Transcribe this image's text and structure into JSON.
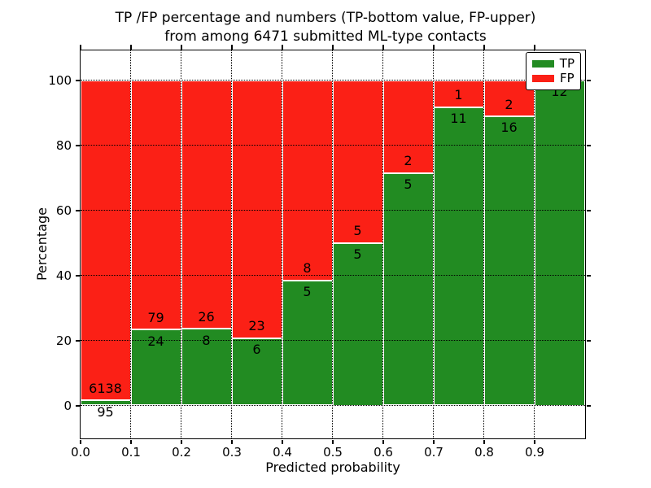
{
  "figure": {
    "title_line1": "TP /FP percentage and numbers (TP-bottom value, FP-upper)",
    "title_line2": "from among 6471 submitted ML-type contacts"
  },
  "chart_data": {
    "type": "bar",
    "stacked": true,
    "title": "TP /FP percentage and numbers (TP-bottom value, FP-upper)\nfrom among 6471 submitted ML-type contacts",
    "xlabel": "Predicted probability",
    "ylabel": "Percentage",
    "total_submitted": 6471,
    "bins": [
      "0.0-0.1",
      "0.1-0.2",
      "0.2-0.3",
      "0.3-0.4",
      "0.4-0.5",
      "0.5-0.6",
      "0.6-0.7",
      "0.7-0.8",
      "0.8-0.9",
      "0.9-1.0"
    ],
    "series": [
      {
        "name": "TP",
        "color": "#228b22",
        "counts": [
          95,
          24,
          8,
          6,
          5,
          5,
          5,
          11,
          16,
          12
        ],
        "labels": [
          "95",
          "24",
          "8",
          "6",
          "5",
          "5",
          "5",
          "11",
          "16",
          "12"
        ],
        "percent": [
          1.5,
          23.3,
          23.5,
          20.7,
          38.5,
          50.0,
          71.4,
          91.7,
          88.9,
          100.0
        ]
      },
      {
        "name": "FP",
        "color": "#fb2016",
        "counts": [
          6138,
          79,
          26,
          23,
          8,
          5,
          2,
          1,
          2,
          0
        ],
        "labels": [
          "6138",
          "79",
          "26",
          "23",
          "8",
          "5",
          "2",
          "1",
          "2",
          ""
        ],
        "percent": [
          98.5,
          76.7,
          76.5,
          79.3,
          61.5,
          50.0,
          28.6,
          8.3,
          11.1,
          0.0
        ]
      }
    ],
    "bar_width": 0.1,
    "bar_edge_color": "#ffffff",
    "xticks": [
      "0.0",
      "0.1",
      "0.2",
      "0.3",
      "0.4",
      "0.5",
      "0.6",
      "0.7",
      "0.8",
      "0.9"
    ],
    "yticks": [
      "0",
      "20",
      "40",
      "60",
      "80",
      "100"
    ],
    "xlim": [
      0.0,
      1.0
    ],
    "ylim": [
      -10,
      109.25
    ],
    "grid_style": "dotted",
    "grid_color": "#000000",
    "legend": {
      "position": "upper right",
      "entries": [
        {
          "label": "TP",
          "color": "#228b22"
        },
        {
          "label": "FP",
          "color": "#fb2016"
        }
      ]
    }
  }
}
